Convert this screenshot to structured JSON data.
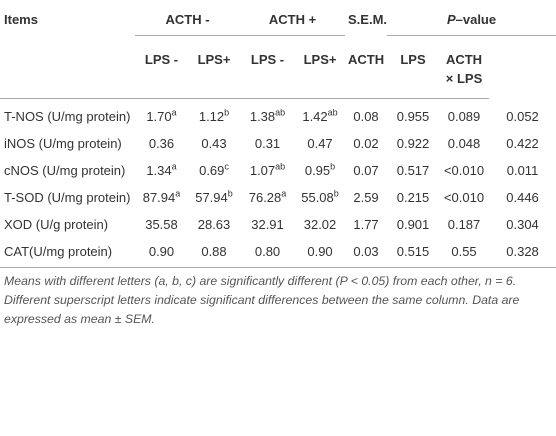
{
  "table": {
    "header": {
      "items": "Items",
      "acth_minus": "ACTH -",
      "acth_plus": "ACTH +",
      "sem": "S.E.M.",
      "pvalue": {
        "italic": "P",
        "rest": "–value"
      },
      "sub": [
        "LPS -",
        "LPS+",
        "LPS -",
        "LPS+",
        "ACTH",
        "LPS",
        "ACTH × LPS"
      ]
    },
    "rows": [
      [
        "T-NOS (U/mg protein)",
        {
          "value": "1.70",
          "sup": "a"
        },
        {
          "value": "1.12",
          "sup": "b"
        },
        {
          "value": "1.38",
          "sup": "ab"
        },
        {
          "value": "1.42",
          "sup": "ab"
        },
        "0.08",
        "0.955",
        "0.089",
        "0.052"
      ],
      [
        "iNOS (U/mg protein)",
        "0.36",
        "0.43",
        "0.31",
        "0.47",
        "0.02",
        "0.922",
        "0.048",
        "0.422"
      ],
      [
        "cNOS (U/mg protein)",
        {
          "value": "1.34",
          "sup": "a"
        },
        {
          "value": "0.69",
          "sup": "c"
        },
        {
          "value": "1.07",
          "sup": "ab"
        },
        {
          "value": "0.95",
          "sup": "b"
        },
        "0.07",
        "0.517",
        "<0.010",
        "0.011"
      ],
      [
        "T-SOD (U/mg protein)",
        {
          "value": "87.94",
          "sup": "a"
        },
        {
          "value": "57.94",
          "sup": "b"
        },
        {
          "value": "76.28",
          "sup": "a"
        },
        {
          "value": "55.08",
          "sup": "b"
        },
        "2.59",
        "0.215",
        "<0.010",
        "0.446"
      ],
      [
        "XOD (U/g protein)",
        "35.58",
        "28.63",
        "32.91",
        "32.02",
        "1.77",
        "0.901",
        "0.187",
        "0.304"
      ],
      [
        "CAT(U/mg protein)",
        "0.90",
        "0.88",
        "0.80",
        "0.90",
        "0.03",
        "0.515",
        "0.55",
        "0.328"
      ]
    ]
  },
  "footnote": "Means with different letters (a, b, c) are significantly different (P < 0.05) from each other, n = 6. Different superscript letters indicate significant differences between the same column. Data are expressed as mean ± SEM."
}
